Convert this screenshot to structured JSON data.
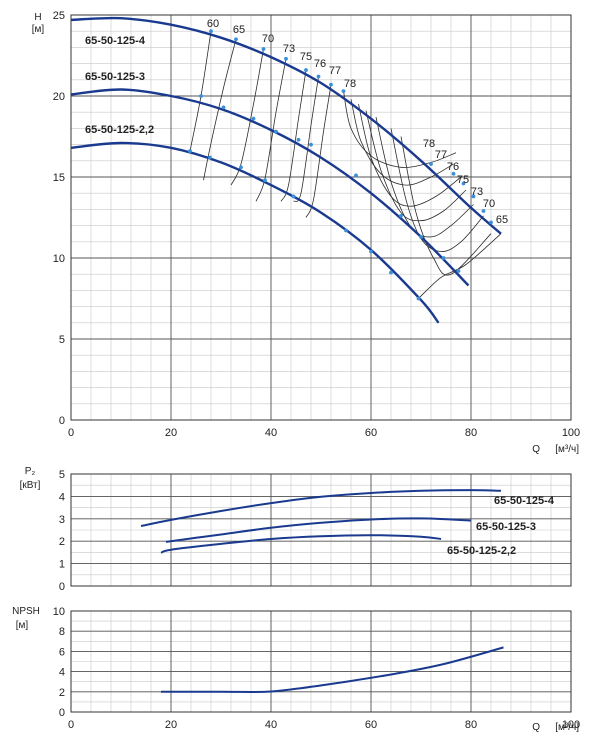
{
  "colors": {
    "curve": "#1a3a8f",
    "marker": "#3a8fd8",
    "efficiency": "#2b2b2b",
    "grid_major": "#555555",
    "grid_minor": "#c8c8c8"
  },
  "chart_data": [
    {
      "type": "line",
      "panel": "head",
      "ylabel": "H",
      "yunit": "[м]",
      "xlabel": "Q",
      "xunit": "[м³/ч]",
      "xlim": [
        0,
        100
      ],
      "ylim": [
        0,
        25
      ],
      "xticks": [
        0,
        20,
        40,
        60,
        80,
        100
      ],
      "yticks": [
        0,
        5,
        10,
        15,
        20,
        25
      ],
      "grid": true,
      "series": [
        {
          "name": "65-50-125-4",
          "x": [
            0,
            10,
            20,
            30,
            40,
            50,
            60,
            70,
            80,
            86
          ],
          "y": [
            24.7,
            24.8,
            24.4,
            23.6,
            22.4,
            20.8,
            18.6,
            16.0,
            13.1,
            11.5
          ]
        },
        {
          "name": "65-50-125-3",
          "x": [
            0,
            10,
            20,
            30,
            40,
            50,
            60,
            70,
            79.5
          ],
          "y": [
            20.1,
            20.4,
            20.0,
            19.2,
            17.9,
            16.2,
            14.0,
            11.3,
            8.3
          ]
        },
        {
          "name": "65-50-125-2,2",
          "x": [
            0,
            10,
            20,
            30,
            40,
            50,
            60,
            70,
            73.5
          ],
          "y": [
            16.8,
            17.1,
            16.8,
            15.9,
            14.5,
            12.8,
            10.5,
            7.4,
            6.0
          ]
        }
      ],
      "efficiency_lines": [
        {
          "label": "60",
          "x": [
            28,
            26,
            23.8
          ],
          "y": [
            24.0,
            20.0,
            16.6
          ]
        },
        {
          "label": "65",
          "x": [
            33,
            30.5,
            27.8,
            26.5
          ],
          "y": [
            23.5,
            20.5,
            16.8,
            14.8
          ]
        },
        {
          "label": "70",
          "x": [
            38.5,
            36.5,
            34,
            32
          ],
          "y": [
            22.9,
            19.5,
            15.8,
            14.5
          ]
        },
        {
          "label": "73",
          "x": [
            43,
            41,
            38.8,
            37
          ],
          "y": [
            22.3,
            19.0,
            14.9,
            13.5
          ]
        },
        {
          "label": "75",
          "x": [
            47,
            45.5,
            43.5,
            42
          ],
          "y": [
            21.6,
            18.6,
            14.5,
            13.5
          ]
        },
        {
          "label": "76",
          "x": [
            49.5,
            48,
            46,
            44.5
          ],
          "y": [
            21.2,
            18.2,
            14.0,
            13.5
          ]
        },
        {
          "label": "77",
          "x": [
            52,
            50.5,
            48.5,
            47
          ],
          "y": [
            20.7,
            17.8,
            13.6,
            12.5
          ]
        },
        {
          "label": "78",
          "x": [
            54.5,
            56,
            60,
            66,
            72,
            77
          ],
          "y": [
            20.3,
            18.0,
            16.3,
            15.6,
            15.9,
            16.5
          ]
        },
        {
          "label": "78",
          "x": [
            56,
            58,
            62,
            67,
            72,
            76.5
          ],
          "y": [
            19.8,
            17.2,
            15.2,
            14.5,
            15.0,
            15.8
          ]
        },
        {
          "label": "77",
          "x": [
            57.5,
            60,
            64,
            68,
            73,
            78
          ],
          "y": [
            19.5,
            16.2,
            13.8,
            13.2,
            13.8,
            15.0
          ]
        },
        {
          "label": "76",
          "x": [
            59,
            62,
            66,
            70,
            74.5,
            79
          ],
          "y": [
            19.1,
            15.4,
            12.8,
            12.3,
            12.9,
            14.2
          ]
        },
        {
          "label": "75",
          "x": [
            61,
            64,
            68,
            72,
            76,
            80.5
          ],
          "y": [
            18.7,
            14.7,
            11.9,
            11.3,
            12.0,
            13.3
          ]
        },
        {
          "label": "73",
          "x": [
            64,
            67,
            70,
            74,
            78,
            82.5
          ],
          "y": [
            18.0,
            13.6,
            11.2,
            10.4,
            11.0,
            12.6
          ]
        },
        {
          "label": "70",
          "x": [
            66,
            69,
            72.5,
            76,
            84
          ],
          "y": [
            17.5,
            12.8,
            10.0,
            9.0,
            11.5
          ]
        },
        {
          "label": "65",
          "x": [
            69.5,
            74,
            79,
            86
          ],
          "y": [
            7.5,
            8.8,
            9.6,
            11.5
          ]
        }
      ],
      "annotations": [
        "60",
        "65",
        "70",
        "73",
        "75",
        "76",
        "77",
        "78",
        "78",
        "77",
        "76",
        "75",
        "73",
        "70",
        "65"
      ]
    },
    {
      "type": "line",
      "panel": "power",
      "ylabel": "P₂",
      "yunit": "[кВт]",
      "xlim": [
        0,
        100
      ],
      "ylim": [
        0,
        5
      ],
      "yticks": [
        0,
        1,
        2,
        3,
        4,
        5
      ],
      "grid": true,
      "series": [
        {
          "name": "65-50-125-4",
          "x": [
            14,
            20,
            30,
            40,
            50,
            60,
            70,
            80,
            86
          ],
          "y": [
            2.68,
            2.95,
            3.35,
            3.7,
            3.98,
            4.15,
            4.25,
            4.28,
            4.25
          ]
        },
        {
          "name": "65-50-125-3",
          "x": [
            19,
            25,
            30,
            40,
            50,
            60,
            70,
            80
          ],
          "y": [
            1.97,
            2.15,
            2.3,
            2.6,
            2.82,
            2.97,
            3.02,
            2.92
          ]
        },
        {
          "name": "65-50-125-2,2",
          "x": [
            18,
            20,
            30,
            40,
            50,
            60,
            70,
            74
          ],
          "y": [
            1.48,
            1.62,
            1.88,
            2.1,
            2.22,
            2.27,
            2.2,
            2.1
          ]
        }
      ]
    },
    {
      "type": "line",
      "panel": "npsh",
      "ylabel": "NPSH",
      "yunit": "[м]",
      "xlabel": "Q",
      "xunit": "[м³/ч]",
      "xlim": [
        0,
        100
      ],
      "ylim": [
        0,
        10
      ],
      "xticks": [
        0,
        20,
        40,
        60,
        80,
        100
      ],
      "yticks": [
        0,
        2,
        4,
        6,
        8,
        10
      ],
      "grid": true,
      "series": [
        {
          "name": "",
          "x": [
            18,
            30,
            39,
            45,
            55,
            65,
            75,
            86.5
          ],
          "y": [
            2.0,
            2.0,
            2.0,
            2.3,
            3.0,
            3.8,
            4.8,
            6.4
          ]
        }
      ]
    }
  ]
}
